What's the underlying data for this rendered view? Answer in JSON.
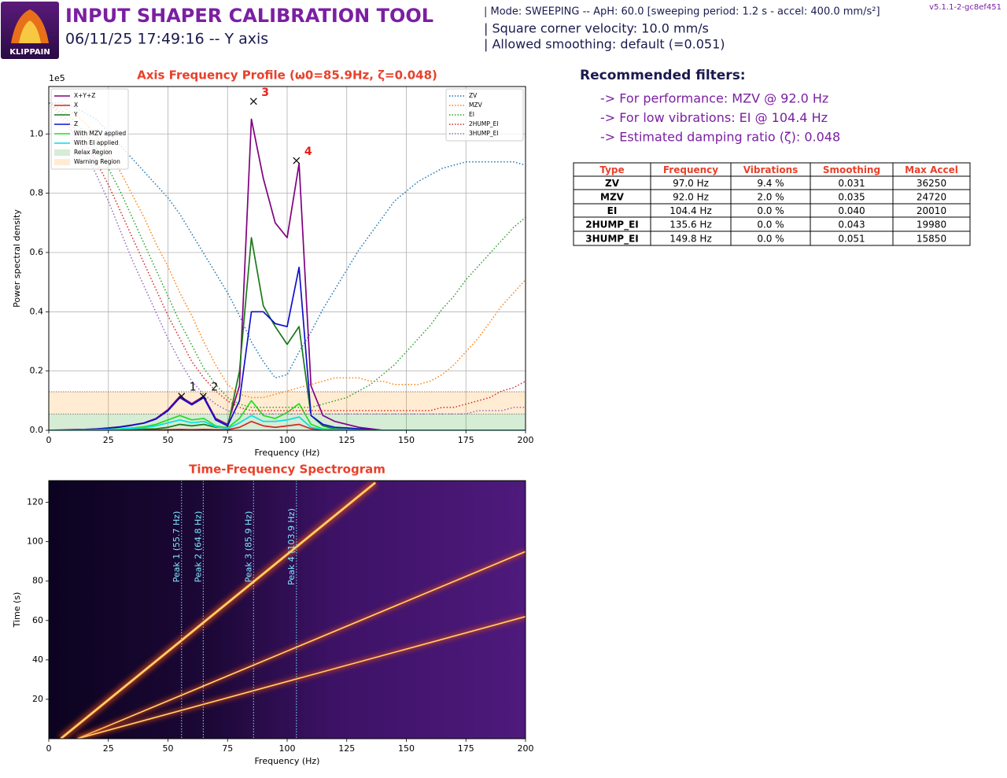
{
  "header": {
    "logo_text": "KLIPPAIN",
    "title": "INPUT SHAPER CALIBRATION TOOL",
    "subtitle": "06/11/25 17:49:16 -- Y axis",
    "info": [
      "| Mode: SWEEPING -- ApH: 60.0 [sweeping period: 1.2 s - accel: 400.0 mm/s²]",
      "| Square corner velocity: 10.0 mm/s",
      "| Allowed smoothing: default (=0.051)"
    ],
    "version": "v5.1.1-2-gc8ef451"
  },
  "recommendations": {
    "title": "Recommended filters:",
    "lines": [
      "-> For performance: MZV @ 92.0 Hz",
      "-> For low vibrations: EI @ 104.4 Hz",
      "-> Estimated damping ratio (ζ): 0.048"
    ]
  },
  "table": {
    "columns": [
      "Type",
      "Frequency",
      "Vibrations",
      "Smoothing",
      "Max Accel"
    ],
    "rows": [
      [
        "ZV",
        "97.0 Hz",
        "9.4 %",
        "0.031",
        "36250"
      ],
      [
        "MZV",
        "92.0 Hz",
        "2.0 %",
        "0.035",
        "24720"
      ],
      [
        "EI",
        "104.4 Hz",
        "0.0 %",
        "0.040",
        "20010"
      ],
      [
        "2HUMP_EI",
        "135.6 Hz",
        "0.0 %",
        "0.043",
        "19980"
      ],
      [
        "3HUMP_EI",
        "149.8 Hz",
        "0.0 %",
        "0.051",
        "15850"
      ]
    ]
  },
  "chart_data": [
    {
      "type": "line",
      "title": "Axis Frequency Profile (ω0=85.9Hz, ζ=0.048)",
      "xlabel": "Frequency (Hz)",
      "ylabel": "Power spectral density",
      "y_offset_label": "1e5",
      "grid": true,
      "legend": "upper left",
      "legend2": "upper right",
      "xlim": [
        0,
        200
      ],
      "ylim": [
        0,
        1.16
      ],
      "y2lim": [
        0,
        1.05
      ],
      "xticks": [
        0,
        25,
        50,
        75,
        100,
        125,
        150,
        175,
        200
      ],
      "yticks": [
        {
          "value": 0,
          "label": "0.0"
        },
        0.2,
        0.4,
        0.6,
        0.8,
        {
          "value": 1,
          "label": "1.0"
        }
      ],
      "x": [
        0,
        5,
        10,
        15,
        20,
        25,
        30,
        35,
        40,
        45,
        50,
        55,
        60,
        65,
        70,
        75,
        80,
        85,
        90,
        95,
        100,
        105,
        110,
        115,
        120,
        125,
        130,
        135,
        140,
        145,
        150,
        155,
        160,
        165,
        170,
        175,
        180,
        185,
        190,
        195,
        200
      ],
      "series": [
        {
          "name": "X+Y+Z",
          "color": "#800080",
          "values": [
            0,
            0.001,
            0.002,
            0.003,
            0.005,
            0.008,
            0.012,
            0.018,
            0.025,
            0.04,
            0.07,
            0.115,
            0.09,
            0.115,
            0.04,
            0.02,
            0.15,
            1.05,
            0.85,
            0.7,
            0.65,
            0.9,
            0.15,
            0.05,
            0.03,
            0.02,
            0.01,
            0.005,
            0,
            0,
            0,
            0,
            0,
            0,
            0,
            0,
            0,
            0,
            0,
            0,
            0
          ]
        },
        {
          "name": "X",
          "color": "#d62728",
          "values": [
            0,
            0,
            0,
            0,
            0,
            0,
            0,
            0,
            0,
            0.001,
            0.002,
            0.003,
            0.002,
            0.003,
            0.002,
            0.002,
            0.01,
            0.03,
            0.015,
            0.01,
            0.015,
            0.02,
            0.005,
            0.002,
            0.001,
            0,
            0,
            0,
            0,
            0,
            0,
            0,
            0,
            0,
            0,
            0,
            0,
            0,
            0,
            0,
            0
          ]
        },
        {
          "name": "Y",
          "color": "#1a7a1a",
          "values": [
            0,
            0,
            0,
            0.001,
            0.001,
            0.002,
            0.002,
            0.003,
            0.004,
            0.005,
            0.01,
            0.02,
            0.015,
            0.02,
            0.01,
            0.01,
            0.2,
            0.65,
            0.42,
            0.35,
            0.29,
            0.35,
            0.05,
            0.015,
            0.005,
            0.003,
            0.002,
            0.001,
            0,
            0,
            0,
            0,
            0,
            0,
            0,
            0,
            0,
            0,
            0,
            0,
            0
          ]
        },
        {
          "name": "Z",
          "color": "#1010cc",
          "values": [
            0,
            0,
            0.001,
            0.002,
            0.004,
            0.007,
            0.011,
            0.017,
            0.024,
            0.038,
            0.066,
            0.11,
            0.086,
            0.11,
            0.035,
            0.015,
            0.1,
            0.4,
            0.4,
            0.36,
            0.35,
            0.55,
            0.05,
            0.02,
            0.01,
            0.008,
            0.005,
            0.002,
            0,
            0,
            0,
            0,
            0,
            0,
            0,
            0,
            0,
            0,
            0,
            0,
            0
          ]
        },
        {
          "name": "With MZV applied",
          "color": "#22dd22",
          "values": [
            0,
            0,
            0,
            0.001,
            0.002,
            0.003,
            0.005,
            0.008,
            0.012,
            0.02,
            0.035,
            0.05,
            0.035,
            0.04,
            0.015,
            0.008,
            0.04,
            0.1,
            0.05,
            0.04,
            0.06,
            0.09,
            0.02,
            0.005,
            0.003,
            0.002,
            0.001,
            0,
            0,
            0,
            0,
            0,
            0,
            0,
            0,
            0,
            0,
            0,
            0,
            0,
            0
          ]
        },
        {
          "name": "With EI applied",
          "color": "#00e0e0",
          "values": [
            0,
            0,
            0,
            0.001,
            0.001,
            0.002,
            0.004,
            0.006,
            0.009,
            0.015,
            0.025,
            0.035,
            0.025,
            0.03,
            0.012,
            0.006,
            0.025,
            0.05,
            0.03,
            0.03,
            0.035,
            0.045,
            0.01,
            0.003,
            0.002,
            0.001,
            0,
            0,
            0,
            0,
            0,
            0,
            0,
            0,
            0,
            0,
            0,
            0,
            0,
            0,
            0
          ]
        },
        {
          "name": "ZV",
          "color": "#1f77b4",
          "axis": "y2",
          "values": [
            1.0,
            1.0,
            0.99,
            0.97,
            0.95,
            0.91,
            0.87,
            0.83,
            0.79,
            0.75,
            0.71,
            0.66,
            0.6,
            0.54,
            0.48,
            0.42,
            0.35,
            0.27,
            0.21,
            0.16,
            0.17,
            0.24,
            0.3,
            0.37,
            0.43,
            0.49,
            0.55,
            0.6,
            0.65,
            0.7,
            0.73,
            0.76,
            0.78,
            0.8,
            0.81,
            0.82,
            0.82,
            0.82,
            0.82,
            0.82,
            0.81
          ]
        },
        {
          "name": "MZV",
          "color": "#ff7f0e",
          "axis": "y2",
          "values": [
            1.0,
            0.99,
            0.97,
            0.94,
            0.9,
            0.85,
            0.79,
            0.72,
            0.65,
            0.57,
            0.5,
            0.42,
            0.35,
            0.27,
            0.2,
            0.14,
            0.11,
            0.1,
            0.1,
            0.11,
            0.12,
            0.13,
            0.14,
            0.15,
            0.16,
            0.16,
            0.16,
            0.15,
            0.15,
            0.14,
            0.14,
            0.14,
            0.15,
            0.17,
            0.2,
            0.24,
            0.28,
            0.33,
            0.38,
            0.42,
            0.46
          ]
        },
        {
          "name": "EI",
          "color": "#2ca02c",
          "axis": "y2",
          "values": [
            1.0,
            0.98,
            0.95,
            0.91,
            0.86,
            0.8,
            0.73,
            0.65,
            0.57,
            0.49,
            0.41,
            0.33,
            0.26,
            0.19,
            0.14,
            0.1,
            0.08,
            0.07,
            0.07,
            0.07,
            0.07,
            0.07,
            0.07,
            0.08,
            0.09,
            0.1,
            0.12,
            0.14,
            0.17,
            0.2,
            0.24,
            0.28,
            0.32,
            0.37,
            0.41,
            0.46,
            0.5,
            0.54,
            0.58,
            0.62,
            0.65
          ]
        },
        {
          "name": "2HUMP_EI",
          "color": "#d62728",
          "axis": "y2",
          "values": [
            1.0,
            0.97,
            0.93,
            0.88,
            0.82,
            0.75,
            0.67,
            0.59,
            0.51,
            0.43,
            0.35,
            0.28,
            0.21,
            0.16,
            0.12,
            0.09,
            0.07,
            0.06,
            0.06,
            0.06,
            0.06,
            0.06,
            0.06,
            0.06,
            0.06,
            0.06,
            0.06,
            0.06,
            0.06,
            0.06,
            0.06,
            0.06,
            0.06,
            0.07,
            0.07,
            0.08,
            0.09,
            0.1,
            0.12,
            0.13,
            0.15
          ]
        },
        {
          "name": "3HUMP_EI",
          "color": "#9467bd",
          "axis": "y2",
          "values": [
            1.0,
            0.96,
            0.91,
            0.85,
            0.78,
            0.7,
            0.61,
            0.52,
            0.44,
            0.36,
            0.28,
            0.21,
            0.15,
            0.11,
            0.08,
            0.06,
            0.05,
            0.05,
            0.05,
            0.05,
            0.05,
            0.05,
            0.05,
            0.05,
            0.05,
            0.05,
            0.05,
            0.05,
            0.05,
            0.05,
            0.05,
            0.05,
            0.05,
            0.05,
            0.05,
            0.05,
            0.06,
            0.06,
            0.06,
            0.07,
            0.07
          ]
        }
      ],
      "regions": [
        {
          "name": "Relax Region",
          "color": "#2ca02c",
          "range": [
            0,
            0.055
          ]
        },
        {
          "name": "Warning Region",
          "color": "#ff9f1c",
          "range": [
            0.055,
            0.13
          ]
        }
      ],
      "peaks": [
        {
          "label": "1",
          "x": 55.7,
          "y": 0.115,
          "color": "#000000"
        },
        {
          "label": "2",
          "x": 64.8,
          "y": 0.115,
          "color": "#000000"
        },
        {
          "label": "3",
          "x": 85.9,
          "y": 1.11,
          "color": "#e8201b"
        },
        {
          "label": "4",
          "x": 103.9,
          "y": 0.91,
          "color": "#e8201b"
        }
      ]
    },
    {
      "type": "spectrogram",
      "title": "Time-Frequency Spectrogram",
      "xlabel": "Frequency (Hz)",
      "ylabel": "Time (s)",
      "grid": false,
      "xlim": [
        0,
        200
      ],
      "ylim": [
        0,
        131
      ],
      "xticks": [
        0,
        25,
        50,
        75,
        100,
        125,
        150,
        175,
        200
      ],
      "yticks": [
        20,
        40,
        60,
        80,
        100,
        120
      ],
      "traces": [
        {
          "x": [
            5,
            137
          ],
          "y": [
            0,
            130
          ]
        },
        {
          "x": [
            12,
            200
          ],
          "y": [
            0,
            95
          ]
        },
        {
          "x": [
            12,
            200
          ],
          "y": [
            0,
            62
          ]
        }
      ],
      "peaks": [
        {
          "label": "Peak 1 (55.7 Hz)",
          "x": 55.7
        },
        {
          "label": "Peak 2 (64.8 Hz)",
          "x": 64.8
        },
        {
          "label": "Peak 3 (85.9 Hz)",
          "x": 85.9
        },
        {
          "label": "Peak 4 (103.9 Hz)",
          "x": 103.9
        }
      ]
    }
  ]
}
